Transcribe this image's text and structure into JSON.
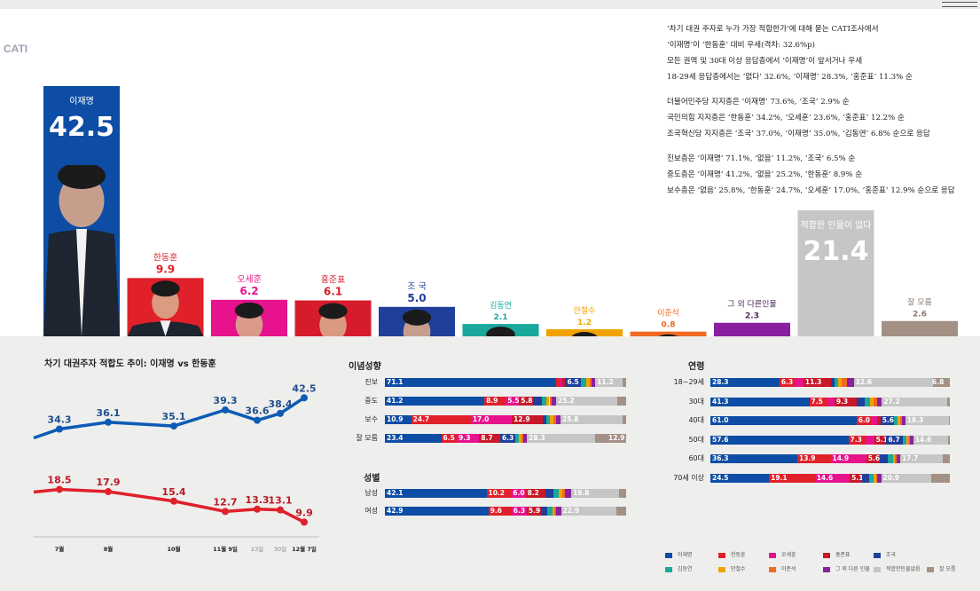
{
  "source_tag": "CATI",
  "notes": [
    "‘차기 대권 주자로 누가 가장 적합한가’에 대해 묻는 CATI조사에서",
    "‘이재명’이 ‘한동훈’ 대비 우세(격차: 32.6%p)",
    "모든 권역 및 30대 이상 응답층에서 ‘이재명’이 앞서거나 우세",
    "18-29세 응답층에서는 ‘없다’ 32.6%, ‘이재명’ 28.3%, ‘홍준표’ 11.3% 순",
    "",
    "더불어민주당 지지층은 ‘이재명’ 73.6%, ‘조국’ 2.9% 순",
    "국민의힘 지지층은 ‘한동훈’ 34.2%, ‘오세훈’ 23.6%, ‘홍준표’ 12.2% 순",
    "조국혁신당 지지층은 ‘조국’ 37.0%, ‘이재명’ 35.0%, ‘김동연’ 6.8% 순으로 응답",
    "",
    "진보층은 ‘이재명’ 71.1%, ‘없음’ 11.2%, ‘조국’ 6.5% 순",
    "중도층은 ‘이재명’ 41.2%, ‘없음’ 25.2%, ‘한동훈’ 8.9% 순",
    "보수층은 ‘없음’ 25.8%, ‘한동훈’ 24.7%, ‘오세훈’ 17.0%, ‘홍준표’ 12.9% 순으로 응답"
  ],
  "chart_data": [
    {
      "type": "bar",
      "categories": [
        "이재명",
        "한동훈",
        "오세훈",
        "홍준표",
        "조 국",
        "김동연",
        "안철수",
        "이준석",
        "그 외 다른인물",
        "적합한 인물이 없다",
        "잘 모름"
      ],
      "values": [
        42.5,
        9.9,
        6.2,
        6.1,
        5.0,
        2.1,
        1.2,
        0.8,
        2.3,
        21.4,
        2.6
      ],
      "value_labels": [
        "42.5",
        "9.9",
        "6.2",
        "6.1",
        "5.0",
        "2.1",
        "1.2",
        "0.8",
        "2.3",
        "21.4",
        "2.6"
      ],
      "colors": [
        "#0d4da5",
        "#e0202a",
        "#e6138c",
        "#d61c2c",
        "#1f3f9a",
        "#1aa89c",
        "#f2a200",
        "#f06a22",
        "#8a1fa0",
        "#c6c6c6",
        "#a49185"
      ]
    },
    {
      "type": "line",
      "title": "차기 대권주자 적합도 추이: 이재명 vs 한동훈",
      "x": [
        "7월",
        "8월",
        "10월",
        "11월 9일",
        "23일",
        "30일",
        "12월 7일"
      ],
      "series": [
        {
          "name": "이재명",
          "values": [
            34.3,
            36.1,
            35.1,
            39.3,
            36.6,
            38.4,
            42.5
          ],
          "color": "#0d5bb5"
        },
        {
          "name": "한동훈",
          "values": [
            18.5,
            17.9,
            15.4,
            12.7,
            13.3,
            13.1,
            9.9
          ],
          "color": "#e0202a"
        }
      ]
    },
    {
      "type": "bar",
      "stacked": true,
      "title": "이념성향",
      "categories": [
        "진보",
        "중도",
        "보수",
        "잘 모름"
      ],
      "series_order": [
        "이재명",
        "한동훈",
        "오세훈",
        "홍준표",
        "조국",
        "김동연",
        "안철수",
        "이준석",
        "그 외 다른 인물",
        "적합한인물없음",
        "잘 모름"
      ],
      "rows": [
        {
          "values": [
            71.1,
            1.5,
            1.0,
            1.2,
            6.5,
            2.0,
            1.5,
            1.0,
            1.4,
            11.2,
            1.6
          ],
          "labels": [
            "71.1",
            "",
            "",
            "",
            "6.5",
            "",
            "",
            "",
            "",
            "11.2",
            ""
          ]
        },
        {
          "values": [
            41.2,
            8.9,
            5.5,
            5.8,
            3.5,
            2.0,
            1.3,
            0.8,
            2.0,
            25.2,
            3.8
          ],
          "labels": [
            "41.2",
            "8.9",
            "5.5",
            "5.8",
            "",
            "",
            "",
            "",
            "",
            "25.2",
            ""
          ]
        },
        {
          "values": [
            10.9,
            24.7,
            17.0,
            12.9,
            1.5,
            1.5,
            1.5,
            0.8,
            2.0,
            25.8,
            1.4
          ],
          "labels": [
            "10.9",
            "24.7",
            "17.0",
            "12.9",
            "",
            "",
            "",
            "",
            "",
            "25.8",
            ""
          ]
        },
        {
          "values": [
            23.4,
            6.5,
            9.3,
            8.7,
            6.3,
            1.5,
            1.0,
            0.8,
            1.5,
            28.3,
            12.9
          ],
          "labels": [
            "23.4",
            "6.5",
            "9.3",
            "8.7",
            "6.3",
            "",
            "",
            "",
            "",
            "28.3",
            "12.9"
          ]
        }
      ]
    },
    {
      "type": "bar",
      "stacked": true,
      "title": "성별",
      "categories": [
        "남성",
        "여성"
      ],
      "rows": [
        {
          "values": [
            42.1,
            10.2,
            6.0,
            8.2,
            3.5,
            2.0,
            1.5,
            1.2,
            2.5,
            19.8,
            3.0
          ],
          "labels": [
            "42.1",
            "10.2",
            "6.0",
            "8.2",
            "",
            "",
            "",
            "",
            "",
            "19.8",
            ""
          ]
        },
        {
          "values": [
            42.9,
            9.6,
            6.3,
            5.9,
            2.5,
            2.2,
            1.0,
            0.6,
            2.0,
            22.9,
            4.1
          ],
          "labels": [
            "42.9",
            "9.6",
            "6.3",
            "5.9",
            "",
            "",
            "",
            "",
            "",
            "22.9",
            ""
          ]
        }
      ]
    },
    {
      "type": "bar",
      "stacked": true,
      "title": "연령",
      "categories": [
        "18~29세",
        "30대",
        "40대",
        "50대",
        "60대",
        "70세 이상"
      ],
      "rows": [
        {
          "values": [
            28.3,
            6.3,
            3.5,
            11.3,
            1.5,
            1.5,
            1.5,
            2.0,
            2.8,
            32.6,
            6.8
          ],
          "labels": [
            "28.3",
            "6.3",
            "",
            "11.3",
            "",
            "",
            "",
            "",
            "",
            "32.6",
            "6.8"
          ]
        },
        {
          "values": [
            41.3,
            7.5,
            3.0,
            9.3,
            3.5,
            2.0,
            1.5,
            1.5,
            2.0,
            27.2,
            1.2
          ],
          "labels": [
            "41.3",
            "7.5",
            "",
            "9.3",
            "",
            "",
            "",
            "",
            "",
            "27.2",
            ""
          ]
        },
        {
          "values": [
            61.0,
            6.0,
            2.5,
            1.5,
            5.6,
            1.5,
            1.0,
            0.8,
            1.5,
            18.3,
            0.3
          ],
          "labels": [
            "61.0",
            "6.0",
            "",
            "",
            "5.6",
            "",
            "",
            "",
            "",
            "18.3",
            ""
          ]
        },
        {
          "values": [
            57.6,
            7.3,
            3.5,
            5.1,
            6.7,
            1.5,
            1.0,
            0.5,
            1.5,
            14.6,
            0.7
          ],
          "labels": [
            "57.6",
            "7.3",
            "",
            "5.1",
            "6.7",
            "",
            "",
            "",
            "",
            "14.6",
            ""
          ]
        },
        {
          "values": [
            36.3,
            13.9,
            14.9,
            5.6,
            3.5,
            2.0,
            1.0,
            0.5,
            1.5,
            17.7,
            3.1
          ],
          "labels": [
            "36.3",
            "13.9",
            "14.9",
            "5.6",
            "",
            "",
            "",
            "",
            "",
            "17.7",
            ""
          ]
        },
        {
          "values": [
            24.5,
            19.1,
            14.6,
            5.1,
            3.0,
            2.0,
            1.0,
            0.5,
            1.5,
            20.9,
            7.8
          ],
          "labels": [
            "24.5",
            "19.1",
            "14.6",
            "5.1",
            "",
            "",
            "",
            "",
            "",
            "20.9",
            ""
          ]
        }
      ]
    }
  ],
  "legend": [
    {
      "label": "이재명",
      "color": "#0d4da5"
    },
    {
      "label": "한동훈",
      "color": "#e0202a"
    },
    {
      "label": "오세훈",
      "color": "#e6138c"
    },
    {
      "label": "홍준표",
      "color": "#c8182a"
    },
    {
      "label": "조국",
      "color": "#1f3f9a"
    },
    {
      "label": "김동연",
      "color": "#1aa89c"
    },
    {
      "label": "안철수",
      "color": "#f2a200"
    },
    {
      "label": "이준석",
      "color": "#f06a22"
    },
    {
      "label": "그 외 다른 인물",
      "color": "#8a1fa0"
    },
    {
      "label": "적합한인물없음",
      "color": "#c6c6c6"
    },
    {
      "label": "잘 모름",
      "color": "#a49185"
    }
  ]
}
